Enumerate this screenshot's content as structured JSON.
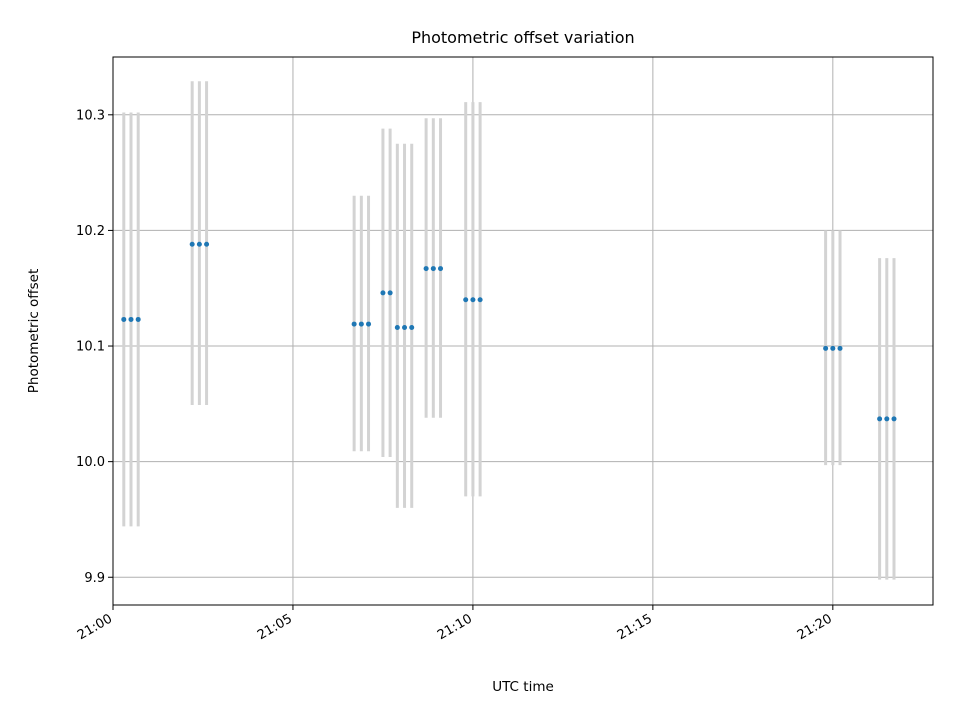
{
  "chart_data": {
    "type": "scatter",
    "title": "Photometric offset variation",
    "xlabel": "UTC time",
    "ylabel": "Photometric offset",
    "x_axis": {
      "kind": "time",
      "range": [
        "21:00:00",
        "21:22:47"
      ],
      "ticks": [
        "21:00",
        "21:05",
        "21:10",
        "21:15",
        "21:20"
      ]
    },
    "y_axis": {
      "range": [
        9.876,
        10.35
      ],
      "ticks": [
        9.9,
        10.0,
        10.1,
        10.2,
        10.3
      ]
    },
    "grid": true,
    "legend": "none",
    "colors": {
      "marker": "#1f77b4",
      "errorbar": "#d3d3d3",
      "grid": "#b0b0b0"
    },
    "series": [
      {
        "marker": "point",
        "points": [
          {
            "time": "21:00:18",
            "value": 10.123,
            "low": 9.944,
            "high": 10.302
          },
          {
            "time": "21:00:30",
            "value": 10.123,
            "low": 9.944,
            "high": 10.302
          },
          {
            "time": "21:00:42",
            "value": 10.123,
            "low": 9.944,
            "high": 10.302
          },
          {
            "time": "21:02:12",
            "value": 10.188,
            "low": 10.049,
            "high": 10.329
          },
          {
            "time": "21:02:24",
            "value": 10.188,
            "low": 10.049,
            "high": 10.329
          },
          {
            "time": "21:02:36",
            "value": 10.188,
            "low": 10.049,
            "high": 10.329
          },
          {
            "time": "21:06:42",
            "value": 10.119,
            "low": 10.009,
            "high": 10.23
          },
          {
            "time": "21:06:54",
            "value": 10.119,
            "low": 10.009,
            "high": 10.23
          },
          {
            "time": "21:07:06",
            "value": 10.119,
            "low": 10.009,
            "high": 10.23
          },
          {
            "time": "21:07:30",
            "value": 10.146,
            "low": 10.004,
            "high": 10.288
          },
          {
            "time": "21:07:42",
            "value": 10.146,
            "low": 10.004,
            "high": 10.288
          },
          {
            "time": "21:07:54",
            "value": 10.116,
            "low": 9.96,
            "high": 10.275
          },
          {
            "time": "21:08:06",
            "value": 10.116,
            "low": 9.96,
            "high": 10.275
          },
          {
            "time": "21:08:18",
            "value": 10.116,
            "low": 9.96,
            "high": 10.275
          },
          {
            "time": "21:08:42",
            "value": 10.167,
            "low": 10.038,
            "high": 10.297
          },
          {
            "time": "21:08:54",
            "value": 10.167,
            "low": 10.038,
            "high": 10.297
          },
          {
            "time": "21:09:06",
            "value": 10.167,
            "low": 10.038,
            "high": 10.297
          },
          {
            "time": "21:09:48",
            "value": 10.14,
            "low": 9.97,
            "high": 10.311
          },
          {
            "time": "21:10:00",
            "value": 10.14,
            "low": 9.97,
            "high": 10.311
          },
          {
            "time": "21:10:12",
            "value": 10.14,
            "low": 9.97,
            "high": 10.311
          },
          {
            "time": "21:19:48",
            "value": 10.098,
            "low": 9.997,
            "high": 10.2
          },
          {
            "time": "21:20:00",
            "value": 10.098,
            "low": 9.997,
            "high": 10.2
          },
          {
            "time": "21:20:12",
            "value": 10.098,
            "low": 9.997,
            "high": 10.2
          },
          {
            "time": "21:21:18",
            "value": 10.037,
            "low": 9.898,
            "high": 10.176
          },
          {
            "time": "21:21:30",
            "value": 10.037,
            "low": 9.898,
            "high": 10.176
          },
          {
            "time": "21:21:42",
            "value": 10.037,
            "low": 9.898,
            "high": 10.176
          }
        ]
      }
    ]
  }
}
